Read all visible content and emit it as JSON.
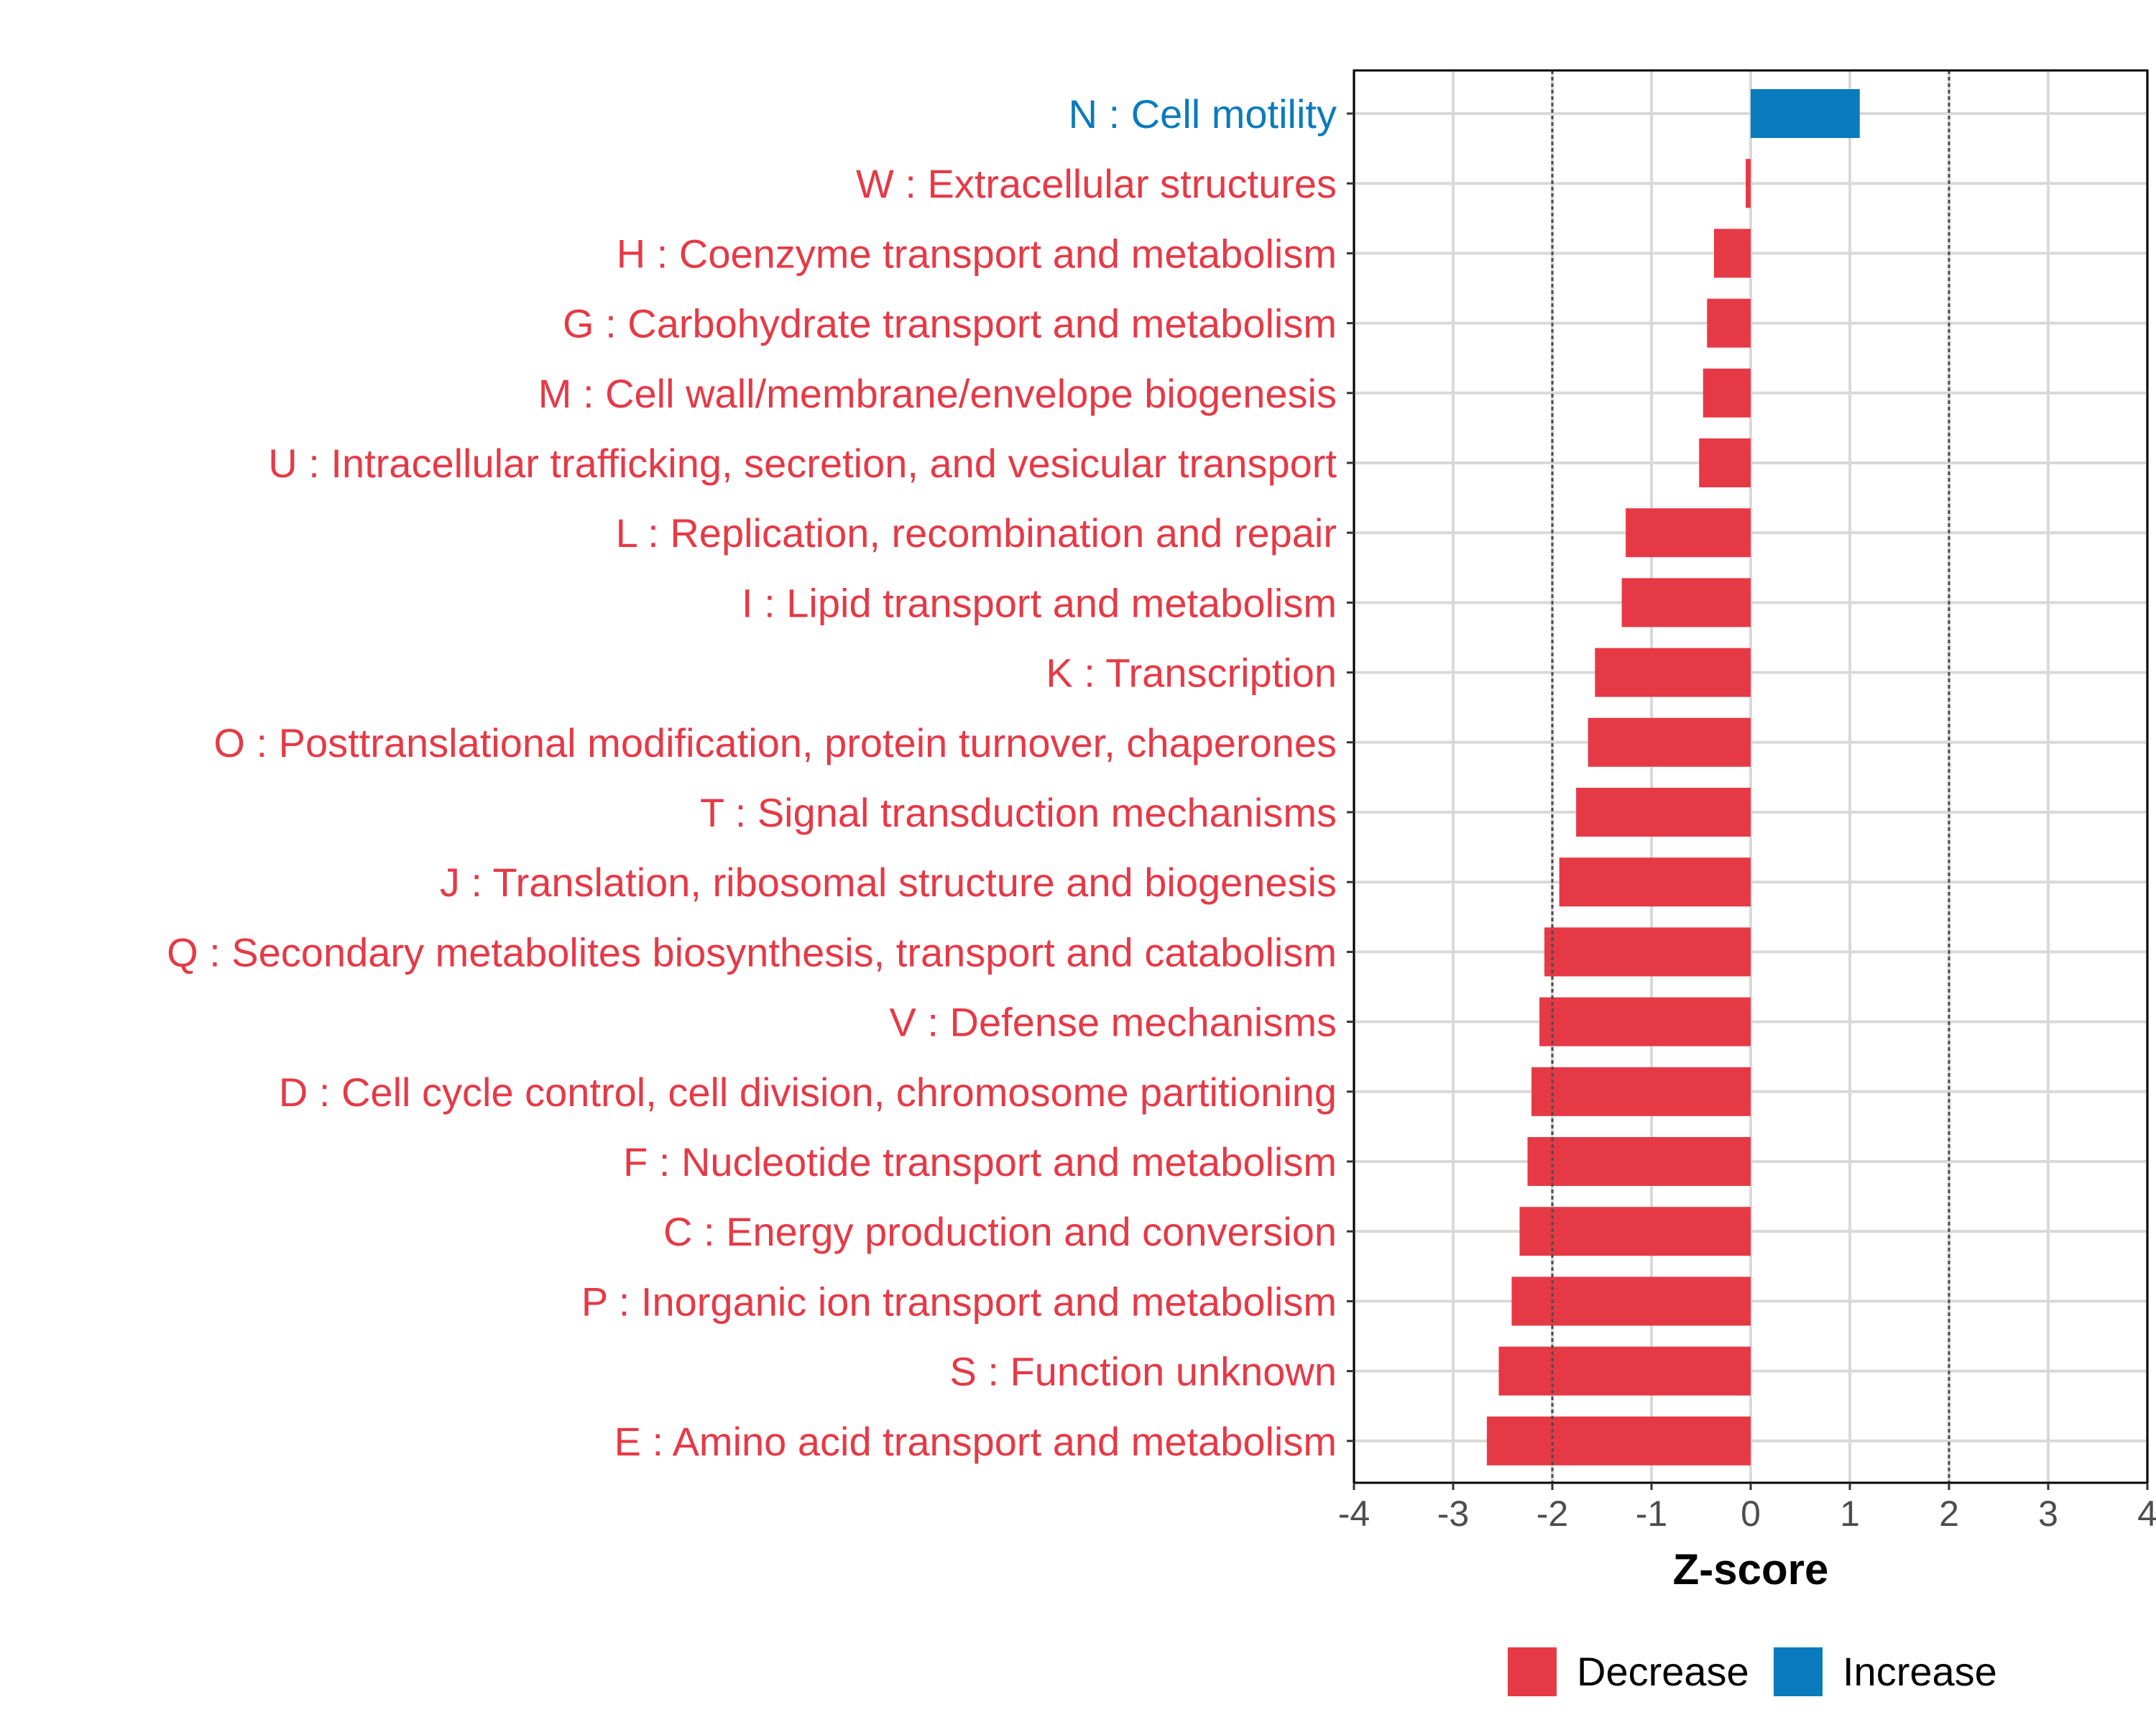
{
  "colors": {
    "decrease": "#E63946",
    "increase": "#0A7BBD",
    "grid": "#D9D9D9",
    "axis": "#000000",
    "tick_text": "#4D4D4D",
    "threshold": "#4D4D4D"
  },
  "chart_data": {
    "type": "bar",
    "orientation": "horizontal",
    "xlabel": "Z-score",
    "xlim": [
      -4,
      4
    ],
    "xticks": [
      -4,
      -3,
      -2,
      -1,
      0,
      1,
      2,
      3,
      4
    ],
    "xtick_labels": [
      "-4",
      "-3",
      "-2",
      "-1",
      "0",
      "1",
      "2",
      "3",
      "4"
    ],
    "thresholds": [
      -2,
      2
    ],
    "grid": true,
    "legend": {
      "position": "bottom",
      "entries": [
        {
          "label": "Decrease",
          "key": "decrease"
        },
        {
          "label": "Increase",
          "key": "increase"
        }
      ]
    },
    "categories": [
      {
        "label": "N : Cell motility",
        "value": 1.1,
        "direction": "increase"
      },
      {
        "label": "W : Extracellular structures",
        "value": -0.05,
        "direction": "decrease"
      },
      {
        "label": "H : Coenzyme transport and metabolism",
        "value": -0.37,
        "direction": "decrease"
      },
      {
        "label": "G : Carbohydrate transport and metabolism",
        "value": -0.44,
        "direction": "decrease"
      },
      {
        "label": "M : Cell wall/membrane/envelope biogenesis",
        "value": -0.48,
        "direction": "decrease"
      },
      {
        "label": "U : Intracellular trafficking, secretion, and vesicular transport",
        "value": -0.52,
        "direction": "decrease"
      },
      {
        "label": "L : Replication, recombination and repair",
        "value": -1.26,
        "direction": "decrease"
      },
      {
        "label": "I : Lipid transport and metabolism",
        "value": -1.3,
        "direction": "decrease"
      },
      {
        "label": "K : Transcription",
        "value": -1.57,
        "direction": "decrease"
      },
      {
        "label": "O : Posttranslational modification, protein turnover, chaperones",
        "value": -1.64,
        "direction": "decrease"
      },
      {
        "label": "T : Signal transduction mechanisms",
        "value": -1.76,
        "direction": "decrease"
      },
      {
        "label": "J : Translation, ribosomal structure and biogenesis",
        "value": -1.93,
        "direction": "decrease"
      },
      {
        "label": "Q : Secondary metabolites biosynthesis, transport and catabolism",
        "value": -2.08,
        "direction": "decrease"
      },
      {
        "label": "V : Defense mechanisms",
        "value": -2.13,
        "direction": "decrease"
      },
      {
        "label": "D : Cell cycle control, cell division, chromosome partitioning",
        "value": -2.21,
        "direction": "decrease"
      },
      {
        "label": "F : Nucleotide transport and metabolism",
        "value": -2.25,
        "direction": "decrease"
      },
      {
        "label": "C : Energy production and conversion",
        "value": -2.33,
        "direction": "decrease"
      },
      {
        "label": "P : Inorganic ion transport and metabolism",
        "value": -2.41,
        "direction": "decrease"
      },
      {
        "label": "S : Function unknown",
        "value": -2.54,
        "direction": "decrease"
      },
      {
        "label": "E : Amino acid transport and metabolism",
        "value": -2.66,
        "direction": "decrease"
      }
    ]
  }
}
